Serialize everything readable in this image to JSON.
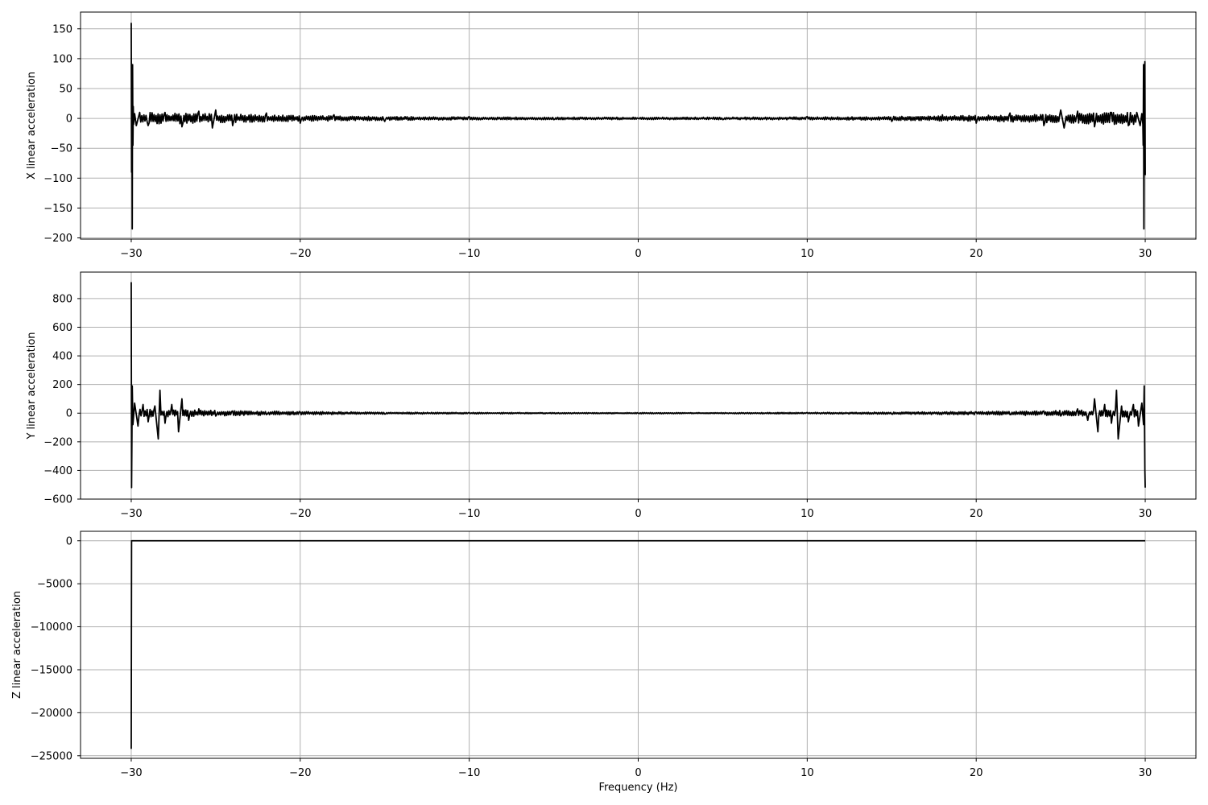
{
  "colors": {
    "line": "#000000",
    "grid": "#b0b0b0",
    "background": "#ffffff"
  },
  "chart_data": [
    {
      "type": "line",
      "title": "",
      "xlabel": "",
      "ylabel": "X linear acceleration",
      "xlim": [
        -33,
        33
      ],
      "ylim": [
        -202,
        178
      ],
      "xticks": [
        -30,
        -20,
        -10,
        0,
        10,
        20,
        30
      ],
      "xtick_labels": [
        "−30",
        "−20",
        "−10",
        "0",
        "10",
        "20",
        "30"
      ],
      "yticks": [
        -200,
        -150,
        -100,
        -50,
        0,
        50,
        100,
        150
      ],
      "ytick_labels": [
        "−200",
        "−150",
        "−100",
        "−50",
        "0",
        "50",
        "100",
        "150"
      ],
      "grid": true,
      "series": [
        {
          "x": [
            -30.0,
            -29.98,
            -29.96,
            -29.94,
            -29.92,
            -29.9,
            -29.88,
            -29.86,
            -29.8,
            -29.7,
            -29.5,
            -29.0,
            -28.0,
            -27.0,
            -26.0,
            -25.2,
            -25.0,
            -24.0,
            -22.0,
            -20.0,
            -18.0,
            -15.0,
            -10.0,
            -5.0,
            0.0,
            5.0,
            10.0,
            15.0,
            18.0,
            20.0,
            22.0,
            24.0,
            25.0,
            25.2,
            26.0,
            27.0,
            28.0,
            29.0,
            29.5,
            29.7,
            29.8,
            29.86,
            29.88,
            29.9,
            29.92,
            29.94,
            29.96,
            29.98,
            30.0
          ],
          "y": [
            160,
            -90,
            85,
            -185,
            90,
            -45,
            20,
            -10,
            8,
            -12,
            10,
            -12,
            10,
            -14,
            12,
            -16,
            14,
            -12,
            9,
            -8,
            6,
            -5,
            3,
            -2,
            0,
            -2,
            3,
            -5,
            6,
            -8,
            9,
            -12,
            14,
            -16,
            12,
            -14,
            10,
            -12,
            10,
            -12,
            8,
            -10,
            -45,
            90,
            -185,
            85,
            -90,
            95,
            -95
          ]
        }
      ],
      "noise_profile": {
        "amplitude_edge": 12,
        "amplitude_center": 2
      }
    },
    {
      "type": "line",
      "title": "",
      "xlabel": "",
      "ylabel": "Y linear acceleration",
      "xlim": [
        -33,
        33
      ],
      "ylim": [
        -600,
        985
      ],
      "xticks": [
        -30,
        -20,
        -10,
        0,
        10,
        20,
        30
      ],
      "xtick_labels": [
        "−30",
        "−20",
        "−10",
        "0",
        "10",
        "20",
        "30"
      ],
      "yticks": [
        -600,
        -400,
        -200,
        0,
        200,
        400,
        600,
        800
      ],
      "ytick_labels": [
        "−600",
        "−400",
        "−200",
        "0",
        "200",
        "400",
        "600",
        "800"
      ],
      "grid": true,
      "series": [
        {
          "x": [
            -30.0,
            -29.98,
            -29.96,
            -29.94,
            -29.9,
            -29.8,
            -29.6,
            -29.3,
            -29.0,
            -28.6,
            -28.4,
            -28.3,
            -28.0,
            -27.6,
            -27.2,
            -27.0,
            -26.6,
            -26.0,
            -25.0,
            -24.0,
            -22.0,
            -20.0,
            -15.0,
            -10.0,
            0.0,
            10.0,
            15.0,
            20.0,
            22.0,
            24.0,
            25.0,
            26.0,
            26.6,
            27.0,
            27.2,
            27.6,
            28.0,
            28.3,
            28.4,
            28.6,
            29.0,
            29.3,
            29.6,
            29.8,
            29.9,
            29.94,
            29.96,
            29.98,
            30.0
          ],
          "y": [
            915,
            -520,
            -200,
            190,
            -80,
            70,
            -90,
            60,
            -60,
            50,
            -180,
            160,
            -70,
            60,
            -130,
            100,
            -50,
            30,
            -20,
            15,
            -10,
            8,
            -6,
            4,
            0,
            4,
            -6,
            8,
            -10,
            15,
            -20,
            30,
            -50,
            100,
            -130,
            60,
            -70,
            160,
            -180,
            50,
            -60,
            60,
            -90,
            70,
            -80,
            190,
            -100,
            -400,
            -520
          ]
        }
      ],
      "noise_profile": {
        "amplitude_edge": 30,
        "amplitude_center": 4
      }
    },
    {
      "type": "line",
      "title": "",
      "xlabel": "Frequency (Hz)",
      "ylabel": "Z linear acceleration",
      "xlim": [
        -33,
        33
      ],
      "ylim": [
        -25300,
        1100
      ],
      "xticks": [
        -30,
        -20,
        -10,
        0,
        10,
        20,
        30
      ],
      "xtick_labels": [
        "−30",
        "−20",
        "−10",
        "0",
        "10",
        "20",
        "30"
      ],
      "yticks": [
        -25000,
        -20000,
        -15000,
        -10000,
        -5000,
        0
      ],
      "ytick_labels": [
        "−25000",
        "−20000",
        "−15000",
        "−10000",
        "−5000",
        "0"
      ],
      "grid": true,
      "series": [
        {
          "x": [
            -30.0,
            -29.98,
            -29.9,
            -20.0,
            -10.0,
            0.0,
            10.0,
            20.0,
            30.0
          ],
          "y": [
            -24200,
            0,
            0,
            0,
            0,
            0,
            0,
            0,
            0
          ]
        }
      ],
      "noise_profile": {
        "amplitude_edge": 0,
        "amplitude_center": 0
      }
    }
  ]
}
